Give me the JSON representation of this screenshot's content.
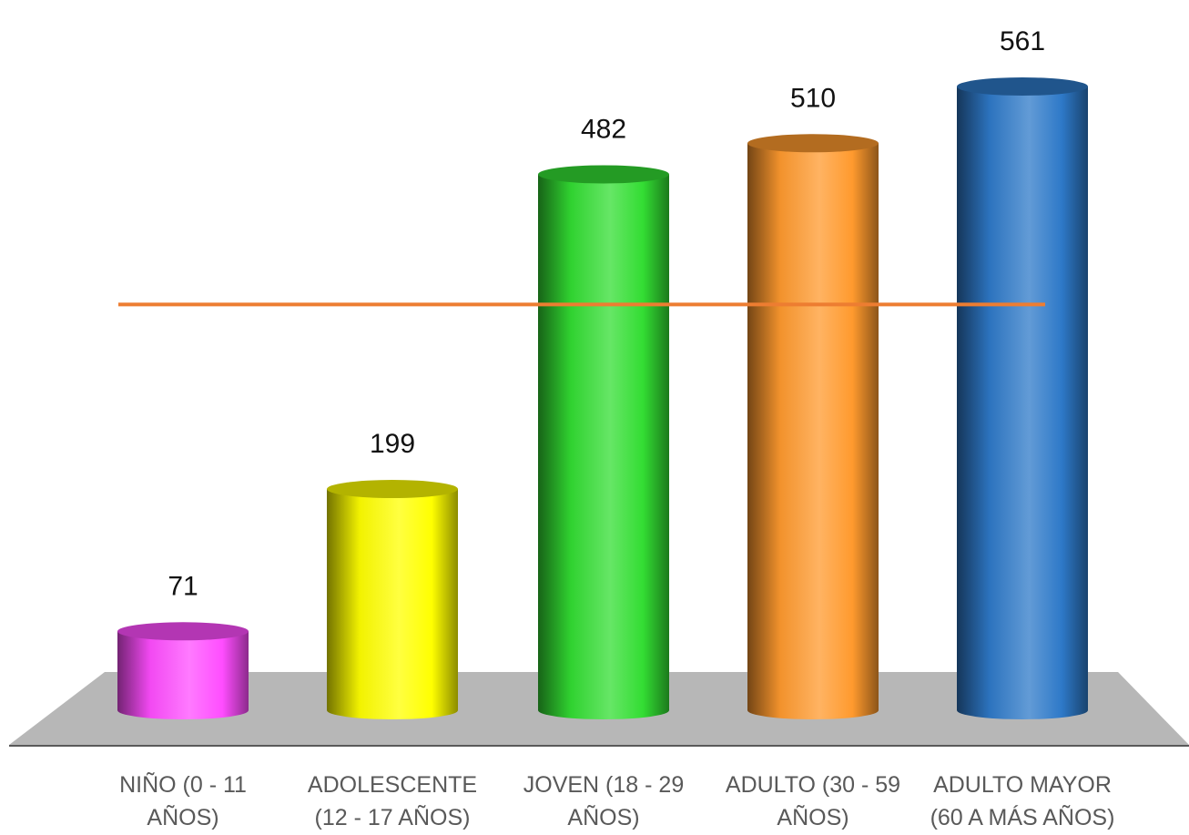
{
  "chart_data": {
    "type": "bar",
    "style": "3d-cylinder",
    "categories": [
      [
        "NIÑO (0 - 11",
        "AÑOS)"
      ],
      [
        "ADOLESCENTE",
        "(12 - 17 AÑOS)"
      ],
      [
        "JOVEN (18 - 29",
        "AÑOS)"
      ],
      [
        "ADULTO (30 - 59",
        "AÑOS)"
      ],
      [
        "ADULTO MAYOR",
        "(60 A MÁS AÑOS)"
      ]
    ],
    "values": [
      71,
      199,
      482,
      510,
      561
    ],
    "colors": [
      "#ff4dff",
      "#ffff00",
      "#33dd33",
      "#ff9a2e",
      "#2e79c8"
    ],
    "reference_line": {
      "value": 365,
      "color": "#ed7d31"
    },
    "ylim": [
      0,
      600
    ],
    "grid": false,
    "legend": "none",
    "title": "",
    "xlabel": "",
    "ylabel": ""
  }
}
